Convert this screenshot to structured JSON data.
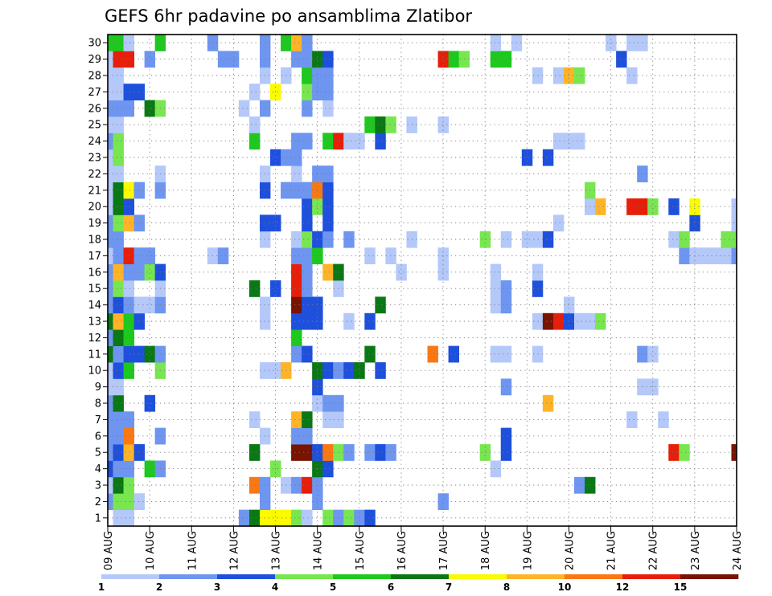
{
  "chart_data": {
    "type": "heatmap",
    "title": "GEFS 6hr padavine po ansamblima Zlatibor",
    "xlabel": "",
    "ylabel": "",
    "x_tick_labels": [
      "09 AUG",
      "10 AUG",
      "11 AUG",
      "12 AUG",
      "13 AUG",
      "14 AUG",
      "15 AUG",
      "16 AUG",
      "17 AUG",
      "18 AUG",
      "19 AUG",
      "20 AUG",
      "21 AUG",
      "22 AUG",
      "23 AUG",
      "24 AUG"
    ],
    "y_tick_labels": [
      "1",
      "2",
      "3",
      "4",
      "5",
      "6",
      "7",
      "8",
      "9",
      "10",
      "11",
      "12",
      "13",
      "14",
      "15",
      "16",
      "17",
      "18",
      "19",
      "20",
      "21",
      "22",
      "23",
      "24",
      "25",
      "26",
      "27",
      "28",
      "29",
      "30"
    ],
    "grid": true,
    "color_levels": [
      "1",
      "2",
      "3",
      "4",
      "5",
      "6",
      "7",
      "8",
      "10",
      "12",
      "15",
      "20"
    ],
    "colors": [
      "#b4c8fa",
      "#6e96f0",
      "#1e50dc",
      "#78e650",
      "#1ec81e",
      "#0a7814",
      "#fafa00",
      "#ffb428",
      "#fa7814",
      "#e61e0a",
      "#781400"
    ],
    "cells": [
      [
        0,
        2,
        2
      ],
      [
        0,
        3,
        1
      ],
      [
        0,
        4,
        3
      ],
      [
        0,
        5,
        2
      ],
      [
        0,
        6,
        2
      ],
      [
        0,
        7,
        2
      ],
      [
        0,
        8,
        2
      ],
      [
        0,
        9,
        1
      ],
      [
        0,
        10,
        1
      ],
      [
        0,
        11,
        6
      ],
      [
        0,
        12,
        2
      ],
      [
        0,
        13,
        6
      ],
      [
        0,
        14,
        2
      ],
      [
        0,
        15,
        2
      ],
      [
        0,
        16,
        2
      ],
      [
        0,
        17,
        1
      ],
      [
        0,
        18,
        2
      ],
      [
        0,
        19,
        2
      ],
      [
        0,
        20,
        1
      ],
      [
        0,
        21,
        1
      ],
      [
        0,
        22,
        1
      ],
      [
        0,
        23,
        1
      ],
      [
        0,
        24,
        2
      ],
      [
        0,
        25,
        1
      ],
      [
        0,
        26,
        2
      ],
      [
        0,
        27,
        1
      ],
      [
        0,
        28,
        1
      ],
      [
        0,
        29,
        1
      ],
      [
        0,
        30,
        5
      ],
      [
        1,
        0,
        2
      ],
      [
        1,
        1,
        1
      ],
      [
        1,
        2,
        4
      ],
      [
        1,
        3,
        6
      ],
      [
        1,
        4,
        2
      ],
      [
        1,
        5,
        3
      ],
      [
        1,
        6,
        2
      ],
      [
        1,
        7,
        2
      ],
      [
        1,
        8,
        6
      ],
      [
        1,
        9,
        1
      ],
      [
        1,
        10,
        3
      ],
      [
        1,
        11,
        2
      ],
      [
        1,
        12,
        6
      ],
      [
        1,
        13,
        8
      ],
      [
        1,
        14,
        3
      ],
      [
        1,
        15,
        4
      ],
      [
        1,
        16,
        8
      ],
      [
        1,
        17,
        2
      ],
      [
        1,
        18,
        2
      ],
      [
        1,
        19,
        4
      ],
      [
        1,
        20,
        6
      ],
      [
        1,
        21,
        6
      ],
      [
        1,
        22,
        1
      ],
      [
        1,
        23,
        4
      ],
      [
        1,
        24,
        4
      ],
      [
        1,
        25,
        1
      ],
      [
        1,
        26,
        2
      ],
      [
        1,
        27,
        1
      ],
      [
        1,
        28,
        1
      ],
      [
        1,
        29,
        10
      ],
      [
        1,
        30,
        5
      ],
      [
        2,
        0,
        2
      ],
      [
        2,
        1,
        1
      ],
      [
        2,
        2,
        4
      ],
      [
        2,
        3,
        4
      ],
      [
        2,
        4,
        2
      ],
      [
        2,
        5,
        8
      ],
      [
        2,
        6,
        9
      ],
      [
        2,
        7,
        2
      ],
      [
        2,
        10,
        5
      ],
      [
        2,
        11,
        3
      ],
      [
        2,
        12,
        5
      ],
      [
        2,
        13,
        5
      ],
      [
        2,
        14,
        2
      ],
      [
        2,
        15,
        1
      ],
      [
        2,
        16,
        2
      ],
      [
        2,
        17,
        10
      ],
      [
        2,
        19,
        8
      ],
      [
        2,
        20,
        3
      ],
      [
        2,
        21,
        7
      ],
      [
        2,
        26,
        2
      ],
      [
        2,
        27,
        3
      ],
      [
        2,
        29,
        10
      ],
      [
        2,
        30,
        1
      ],
      [
        3,
        2,
        1
      ],
      [
        3,
        5,
        3
      ],
      [
        3,
        11,
        3
      ],
      [
        3,
        13,
        3
      ],
      [
        3,
        14,
        1
      ],
      [
        3,
        16,
        2
      ],
      [
        3,
        17,
        2
      ],
      [
        3,
        19,
        2
      ],
      [
        3,
        21,
        2
      ],
      [
        3,
        27,
        3
      ],
      [
        4,
        4,
        5
      ],
      [
        4,
        8,
        3
      ],
      [
        4,
        11,
        6
      ],
      [
        4,
        14,
        1
      ],
      [
        4,
        16,
        4
      ],
      [
        4,
        17,
        2
      ],
      [
        4,
        26,
        6
      ],
      [
        4,
        29,
        2
      ],
      [
        5,
        4,
        2
      ],
      [
        5,
        6,
        2
      ],
      [
        5,
        10,
        4
      ],
      [
        5,
        11,
        2
      ],
      [
        5,
        14,
        2
      ],
      [
        5,
        15,
        1
      ],
      [
        5,
        16,
        3
      ],
      [
        5,
        21,
        2
      ],
      [
        5,
        22,
        1
      ],
      [
        5,
        26,
        4
      ],
      [
        5,
        30,
        5
      ],
      [
        10,
        17,
        1
      ],
      [
        10,
        30,
        2
      ],
      [
        11,
        17,
        2
      ],
      [
        11,
        29,
        2
      ],
      [
        12,
        29,
        2
      ],
      [
        13,
        1,
        2
      ],
      [
        13,
        26,
        1
      ],
      [
        14,
        1,
        6
      ],
      [
        14,
        3,
        9
      ],
      [
        14,
        5,
        6
      ],
      [
        14,
        7,
        1
      ],
      [
        14,
        15,
        6
      ],
      [
        14,
        24,
        5
      ],
      [
        14,
        25,
        1
      ],
      [
        14,
        27,
        1
      ],
      [
        15,
        1,
        7
      ],
      [
        15,
        2,
        2
      ],
      [
        15,
        3,
        2
      ],
      [
        15,
        6,
        1
      ],
      [
        15,
        10,
        1
      ],
      [
        15,
        13,
        1
      ],
      [
        15,
        14,
        1
      ],
      [
        15,
        18,
        1
      ],
      [
        15,
        19,
        3
      ],
      [
        15,
        21,
        3
      ],
      [
        15,
        22,
        1
      ],
      [
        15,
        26,
        2
      ],
      [
        15,
        28,
        1
      ],
      [
        15,
        29,
        2
      ],
      [
        15,
        30,
        2
      ],
      [
        16,
        1,
        7
      ],
      [
        16,
        4,
        4
      ],
      [
        16,
        10,
        1
      ],
      [
        16,
        15,
        3
      ],
      [
        16,
        19,
        3
      ],
      [
        16,
        23,
        3
      ],
      [
        16,
        27,
        7
      ],
      [
        17,
        1,
        7
      ],
      [
        17,
        3,
        1
      ],
      [
        17,
        10,
        8
      ],
      [
        17,
        21,
        2
      ],
      [
        17,
        23,
        2
      ],
      [
        17,
        28,
        1
      ],
      [
        17,
        30,
        5
      ],
      [
        18,
        1,
        4
      ],
      [
        18,
        3,
        2
      ],
      [
        18,
        5,
        11
      ],
      [
        18,
        6,
        2
      ],
      [
        18,
        7,
        8
      ],
      [
        18,
        11,
        2
      ],
      [
        18,
        12,
        5
      ],
      [
        18,
        13,
        3
      ],
      [
        18,
        14,
        11
      ],
      [
        18,
        15,
        10
      ],
      [
        18,
        16,
        10
      ],
      [
        18,
        17,
        2
      ],
      [
        18,
        18,
        1
      ],
      [
        18,
        21,
        2
      ],
      [
        18,
        22,
        1
      ],
      [
        18,
        23,
        2
      ],
      [
        18,
        24,
        2
      ],
      [
        18,
        29,
        2
      ],
      [
        18,
        30,
        8
      ],
      [
        19,
        1,
        1
      ],
      [
        19,
        3,
        10
      ],
      [
        19,
        5,
        11
      ],
      [
        19,
        6,
        2
      ],
      [
        19,
        7,
        6
      ],
      [
        19,
        11,
        3
      ],
      [
        19,
        13,
        3
      ],
      [
        19,
        14,
        3
      ],
      [
        19,
        15,
        2
      ],
      [
        19,
        16,
        2
      ],
      [
        19,
        17,
        2
      ],
      [
        19,
        18,
        4
      ],
      [
        19,
        19,
        3
      ],
      [
        19,
        20,
        3
      ],
      [
        19,
        21,
        2
      ],
      [
        19,
        24,
        2
      ],
      [
        19,
        26,
        2
      ],
      [
        19,
        27,
        4
      ],
      [
        19,
        28,
        5
      ],
      [
        19,
        29,
        2
      ],
      [
        19,
        30,
        2
      ],
      [
        20,
        2,
        2
      ],
      [
        20,
        3,
        2
      ],
      [
        20,
        4,
        6
      ],
      [
        20,
        5,
        3
      ],
      [
        20,
        8,
        1
      ],
      [
        20,
        9,
        3
      ],
      [
        20,
        10,
        6
      ],
      [
        20,
        13,
        3
      ],
      [
        20,
        14,
        3
      ],
      [
        20,
        17,
        5
      ],
      [
        20,
        18,
        3
      ],
      [
        20,
        20,
        4
      ],
      [
        20,
        21,
        9
      ],
      [
        20,
        22,
        2
      ],
      [
        20,
        27,
        2
      ],
      [
        20,
        28,
        2
      ],
      [
        20,
        29,
        6
      ],
      [
        21,
        1,
        4
      ],
      [
        21,
        4,
        3
      ],
      [
        21,
        5,
        9
      ],
      [
        21,
        7,
        1
      ],
      [
        21,
        8,
        2
      ],
      [
        21,
        10,
        3
      ],
      [
        21,
        16,
        8
      ],
      [
        21,
        18,
        2
      ],
      [
        21,
        19,
        3
      ],
      [
        21,
        20,
        3
      ],
      [
        21,
        21,
        3
      ],
      [
        21,
        22,
        2
      ],
      [
        21,
        24,
        5
      ],
      [
        21,
        26,
        1
      ],
      [
        21,
        27,
        2
      ],
      [
        21,
        28,
        2
      ],
      [
        21,
        29,
        3
      ],
      [
        22,
        1,
        2
      ],
      [
        22,
        5,
        4
      ],
      [
        22,
        7,
        1
      ],
      [
        22,
        8,
        2
      ],
      [
        22,
        10,
        2
      ],
      [
        22,
        15,
        1
      ],
      [
        22,
        16,
        6
      ],
      [
        22,
        24,
        10
      ],
      [
        23,
        1,
        4
      ],
      [
        23,
        5,
        2
      ],
      [
        23,
        10,
        3
      ],
      [
        23,
        13,
        1
      ],
      [
        23,
        18,
        2
      ],
      [
        23,
        24,
        1
      ],
      [
        24,
        1,
        2
      ],
      [
        24,
        10,
        6
      ],
      [
        24,
        24,
        1
      ],
      [
        25,
        1,
        3
      ],
      [
        25,
        5,
        2
      ],
      [
        25,
        11,
        6
      ],
      [
        25,
        13,
        3
      ],
      [
        25,
        17,
        1
      ],
      [
        25,
        25,
        5
      ],
      [
        26,
        5,
        3
      ],
      [
        26,
        10,
        3
      ],
      [
        26,
        14,
        6
      ],
      [
        26,
        24,
        3
      ],
      [
        26,
        25,
        6
      ],
      [
        27,
        5,
        2
      ],
      [
        27,
        17,
        1
      ],
      [
        27,
        25,
        4
      ],
      [
        28,
        16,
        1
      ],
      [
        29,
        18,
        1
      ],
      [
        29,
        25,
        1
      ],
      [
        31,
        11,
        9
      ],
      [
        32,
        2,
        2
      ],
      [
        32,
        16,
        1
      ],
      [
        32,
        17,
        1
      ],
      [
        32,
        25,
        1
      ],
      [
        32,
        29,
        10
      ],
      [
        33,
        11,
        3
      ],
      [
        33,
        29,
        5
      ],
      [
        34,
        29,
        4
      ],
      [
        36,
        5,
        4
      ],
      [
        36,
        18,
        4
      ],
      [
        37,
        4,
        1
      ],
      [
        37,
        11,
        1
      ],
      [
        37,
        14,
        1
      ],
      [
        37,
        15,
        1
      ],
      [
        37,
        16,
        1
      ],
      [
        37,
        29,
        5
      ],
      [
        37,
        30,
        1
      ],
      [
        38,
        5,
        3
      ],
      [
        38,
        6,
        3
      ],
      [
        38,
        9,
        2
      ],
      [
        38,
        11,
        1
      ],
      [
        38,
        14,
        2
      ],
      [
        38,
        15,
        2
      ],
      [
        38,
        18,
        1
      ],
      [
        38,
        29,
        5
      ],
      [
        39,
        30,
        1
      ],
      [
        40,
        18,
        1
      ],
      [
        40,
        23,
        3
      ],
      [
        41,
        11,
        1
      ],
      [
        41,
        13,
        1
      ],
      [
        41,
        15,
        3
      ],
      [
        41,
        16,
        1
      ],
      [
        41,
        18,
        1
      ],
      [
        41,
        28,
        1
      ],
      [
        42,
        8,
        8
      ],
      [
        42,
        13,
        11
      ],
      [
        42,
        18,
        3
      ],
      [
        42,
        23,
        3
      ],
      [
        43,
        0,
        2
      ],
      [
        43,
        13,
        10
      ],
      [
        43,
        19,
        1
      ],
      [
        43,
        24,
        1
      ],
      [
        43,
        28,
        1
      ],
      [
        44,
        13,
        3
      ],
      [
        44,
        14,
        1
      ],
      [
        44,
        24,
        1
      ],
      [
        44,
        28,
        8
      ],
      [
        45,
        3,
        2
      ],
      [
        45,
        13,
        1
      ],
      [
        45,
        24,
        1
      ],
      [
        45,
        28,
        4
      ],
      [
        46,
        3,
        6
      ],
      [
        46,
        13,
        1
      ],
      [
        46,
        20,
        1
      ],
      [
        46,
        21,
        4
      ],
      [
        47,
        13,
        4
      ],
      [
        47,
        20,
        8
      ],
      [
        48,
        30,
        1
      ],
      [
        49,
        29,
        3
      ],
      [
        50,
        7,
        1
      ],
      [
        50,
        20,
        10
      ],
      [
        50,
        28,
        1
      ],
      [
        50,
        30,
        1
      ],
      [
        51,
        9,
        1
      ],
      [
        51,
        11,
        2
      ],
      [
        51,
        20,
        10
      ],
      [
        51,
        22,
        2
      ],
      [
        51,
        30,
        1
      ],
      [
        52,
        9,
        1
      ],
      [
        52,
        11,
        1
      ],
      [
        52,
        20,
        4
      ],
      [
        53,
        7,
        1
      ],
      [
        54,
        5,
        10
      ],
      [
        54,
        18,
        1
      ],
      [
        54,
        20,
        3
      ],
      [
        55,
        5,
        4
      ],
      [
        55,
        17,
        2
      ],
      [
        55,
        18,
        4
      ],
      [
        56,
        17,
        1
      ],
      [
        56,
        19,
        3
      ],
      [
        56,
        20,
        7
      ],
      [
        57,
        17,
        1
      ],
      [
        58,
        17,
        1
      ],
      [
        59,
        17,
        1
      ],
      [
        59,
        18,
        4
      ],
      [
        60,
        5,
        11
      ],
      [
        60,
        17,
        2
      ],
      [
        60,
        18,
        4
      ],
      [
        60,
        19,
        1
      ],
      [
        60,
        20,
        1
      ],
      [
        61,
        5,
        4
      ],
      [
        61,
        18,
        6
      ],
      [
        61,
        20,
        3
      ],
      [
        62,
        20,
        5
      ],
      [
        63,
        19,
        1
      ],
      [
        64,
        19,
        1
      ],
      [
        64,
        24,
        4
      ],
      [
        65,
        4,
        1
      ],
      [
        65,
        13,
        1
      ],
      [
        65,
        17,
        5
      ],
      [
        65,
        19,
        4
      ],
      [
        65,
        27,
        2
      ],
      [
        65,
        29,
        1
      ]
    ]
  }
}
